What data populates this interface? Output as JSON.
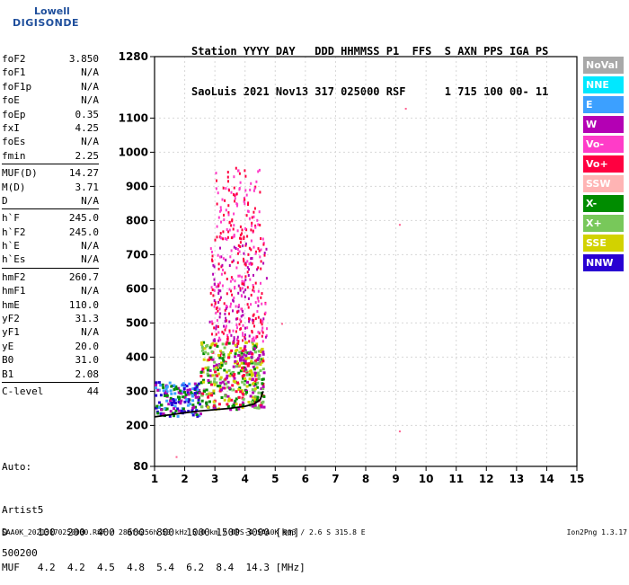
{
  "logo": {
    "line1": "Lowell",
    "line2": "DIGISONDE"
  },
  "header": {
    "line1": "Station YYYY DAY   DDD HHMMSS P1  FFS  S AXN PPS IGA PS",
    "line2": "SaoLuis 2021 Nov13 317 025000 RSF      1 715 100 00- 11"
  },
  "params": {
    "group1": [
      {
        "name": "foF2",
        "value": "3.850"
      },
      {
        "name": "foF1",
        "value": "N/A"
      },
      {
        "name": "foF1p",
        "value": "N/A"
      },
      {
        "name": "foE",
        "value": "N/A"
      },
      {
        "name": "foEp",
        "value": "0.35"
      },
      {
        "name": "fxI",
        "value": "4.25"
      },
      {
        "name": "foEs",
        "value": "N/A"
      },
      {
        "name": "fmin",
        "value": "2.25"
      }
    ],
    "group2": [
      {
        "name": "MUF(D)",
        "value": "14.27"
      },
      {
        "name": "M(D)",
        "value": "3.71"
      },
      {
        "name": "D",
        "value": "N/A"
      }
    ],
    "group3": [
      {
        "name": "h`F",
        "value": "245.0"
      },
      {
        "name": "h`F2",
        "value": "245.0"
      },
      {
        "name": "h`E",
        "value": "N/A"
      },
      {
        "name": "h`Es",
        "value": "N/A"
      }
    ],
    "group4": [
      {
        "name": "hmF2",
        "value": "260.7"
      },
      {
        "name": "hmF1",
        "value": "N/A"
      },
      {
        "name": "hmE",
        "value": "110.0"
      },
      {
        "name": "yF2",
        "value": "31.3"
      },
      {
        "name": "yF1",
        "value": "N/A"
      },
      {
        "name": "yE",
        "value": "20.0"
      },
      {
        "name": "B0",
        "value": "31.0"
      },
      {
        "name": "B1",
        "value": "2.08"
      }
    ],
    "group5": [
      {
        "name": "C-level",
        "value": "44"
      }
    ]
  },
  "auto": {
    "line1": "Auto:",
    "line2": "Artist5",
    "line3": "500200"
  },
  "legend": [
    {
      "label": "NoVal",
      "color": "#a8a8a8"
    },
    {
      "label": "NNE",
      "color": "#00e8ff"
    },
    {
      "label": "E",
      "color": "#3ca0ff"
    },
    {
      "label": "W",
      "color": "#b400b4"
    },
    {
      "label": "Vo-",
      "color": "#ff3cc8"
    },
    {
      "label": "Vo+",
      "color": "#ff0040"
    },
    {
      "label": "SSW",
      "color": "#ffb4b4"
    },
    {
      "label": "X-",
      "color": "#008c00"
    },
    {
      "label": "X+",
      "color": "#78c85a"
    },
    {
      "label": "SSE",
      "color": "#d2d200"
    },
    {
      "label": "NNW",
      "color": "#2800d2"
    }
  ],
  "bottom": {
    "line1": "D     100  200  400  600  800  1000 1500 3000 [km]",
    "line2": "MUF   4.2  4.2  4.5  4.8  5.4  6.2  8.4  14.3 [MHz]"
  },
  "footer": {
    "left": "SAA0K_20213170250000.RSF / 280fx256h 50 kHz 5.0 km / DPS-4 SAA0K 903 / 2.6 S 315.8 E",
    "right": "Ion2Png 1.3.17"
  },
  "chart_data": {
    "type": "scatter",
    "title": "",
    "xlabel": "",
    "ylabel": "",
    "x_ticks": [
      1,
      2,
      3,
      4,
      5,
      6,
      7,
      8,
      9,
      10,
      11,
      12,
      13,
      14,
      15
    ],
    "y_ticks": [
      80,
      200,
      300,
      400,
      500,
      600,
      700,
      800,
      900,
      1000,
      1100,
      1280
    ],
    "xlim": [
      1,
      15
    ],
    "ylim": [
      80,
      1280
    ],
    "grid": true,
    "trace": {
      "x": [
        1.0,
        1.5,
        2.0,
        2.5,
        3.0,
        3.5,
        4.0,
        4.3,
        4.5,
        4.6
      ],
      "y": [
        225,
        231,
        237,
        242,
        246,
        250,
        256,
        263,
        275,
        300
      ]
    },
    "echo_region": {
      "x_range": [
        1.0,
        4.8
      ],
      "lower_height": [
        225,
        250
      ],
      "clusters": [
        {
          "x": [
            1.0,
            2.5
          ],
          "y": [
            230,
            330
          ],
          "series": [
            "NNW",
            "W",
            "X-",
            "E"
          ]
        },
        {
          "x": [
            2.5,
            4.6
          ],
          "y": [
            250,
            450
          ],
          "series": [
            "W",
            "Vo+",
            "X-",
            "X+",
            "SSE"
          ]
        },
        {
          "x": [
            2.8,
            4.7
          ],
          "y": [
            450,
            750
          ],
          "series": [
            "Vo-",
            "W",
            "Vo+"
          ]
        },
        {
          "x": [
            3.0,
            4.5
          ],
          "y": [
            750,
            960
          ],
          "series": [
            "Vo-",
            "Vo+"
          ]
        }
      ]
    },
    "outliers": [
      {
        "x": 9.3,
        "y": 1130
      },
      {
        "x": 9.1,
        "y": 790
      },
      {
        "x": 9.1,
        "y": 185
      },
      {
        "x": 5.2,
        "y": 500
      },
      {
        "x": 1.7,
        "y": 110
      }
    ]
  }
}
